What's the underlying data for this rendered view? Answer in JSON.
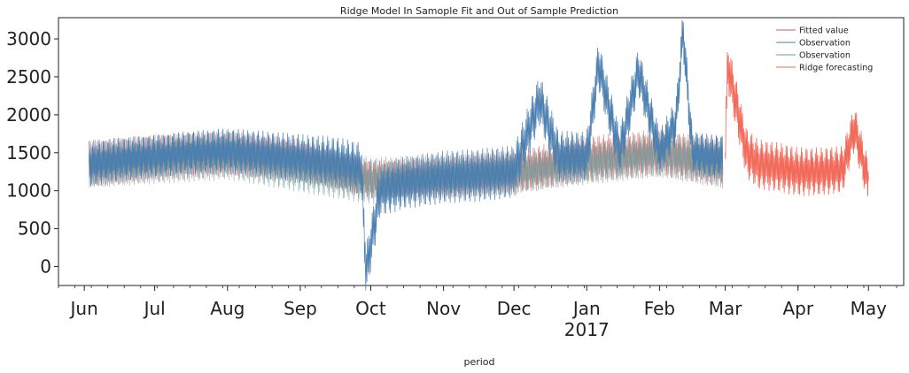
{
  "chart_data": {
    "type": "line",
    "title": "Ridge Model In Samople Fit and Out of Sample Prediction",
    "xlabel": "period",
    "ylabel": "",
    "x_range": [
      "2016-05-21",
      "2017-05-16"
    ],
    "ylim": [
      -250,
      3280
    ],
    "y_ticks": [
      0,
      500,
      1000,
      1500,
      2000,
      2500,
      3000
    ],
    "x_tick_labels": [
      {
        "date": "2016-06-01",
        "label": "Jun",
        "sub": ""
      },
      {
        "date": "2016-07-01",
        "label": "Jul",
        "sub": ""
      },
      {
        "date": "2016-08-01",
        "label": "Aug",
        "sub": ""
      },
      {
        "date": "2016-09-01",
        "label": "Sep",
        "sub": ""
      },
      {
        "date": "2016-10-01",
        "label": "Oct",
        "sub": ""
      },
      {
        "date": "2016-11-01",
        "label": "Nov",
        "sub": ""
      },
      {
        "date": "2016-12-01",
        "label": "Dec",
        "sub": ""
      },
      {
        "date": "2017-01-01",
        "label": "Jan",
        "sub": "2017"
      },
      {
        "date": "2017-02-01",
        "label": "Feb",
        "sub": ""
      },
      {
        "date": "2017-03-01",
        "label": "Mar",
        "sub": ""
      },
      {
        "date": "2017-04-01",
        "label": "Apr",
        "sub": ""
      },
      {
        "date": "2017-05-01",
        "label": "May",
        "sub": ""
      }
    ],
    "grid": false,
    "legend_position": "top-right",
    "series": [
      {
        "name": "Fitted value",
        "color": "#c95b5b",
        "x": [
          "2016-06-03",
          "2016-07-01",
          "2016-08-01",
          "2016-09-01",
          "2016-10-01",
          "2016-11-01",
          "2016-12-01",
          "2017-01-01",
          "2017-02-01",
          "2017-02-28"
        ],
        "y": [
          1350,
          1430,
          1480,
          1400,
          1150,
          1180,
          1240,
          1420,
          1500,
          1350
        ]
      },
      {
        "name": "Observation",
        "color": "#4a7fb0",
        "x": [
          "2016-06-03",
          "2016-06-20",
          "2016-07-01",
          "2016-07-15",
          "2016-08-01",
          "2016-08-15",
          "2016-09-01",
          "2016-09-15",
          "2016-09-27",
          "2016-09-29",
          "2016-10-05",
          "2016-10-15",
          "2016-11-01",
          "2016-11-15",
          "2016-12-01",
          "2016-12-12",
          "2016-12-20",
          "2017-01-01",
          "2017-01-06",
          "2017-01-15",
          "2017-01-23",
          "2017-02-01",
          "2017-02-08",
          "2017-02-11",
          "2017-02-15",
          "2017-02-22",
          "2017-02-28"
        ],
        "y": [
          1350,
          1420,
          1450,
          1500,
          1520,
          1480,
          1420,
          1380,
          1300,
          -80,
          1000,
          1100,
          1180,
          1200,
          1250,
          2200,
          1450,
          1450,
          2670,
          1500,
          2580,
          1500,
          1900,
          3110,
          1500,
          1450,
          1450
        ]
      },
      {
        "name": "Observation",
        "color": "#6b9b9b",
        "x": [
          "2016-06-03",
          "2016-08-01",
          "2016-10-01",
          "2016-12-01",
          "2017-02-01",
          "2017-02-28"
        ],
        "y": [
          1340,
          1470,
          1130,
          1230,
          1480,
          1340
        ]
      },
      {
        "name": "Ridge forecasting",
        "color": "#f26a5a",
        "x": [
          "2017-03-01",
          "2017-03-02",
          "2017-03-05",
          "2017-03-10",
          "2017-03-15",
          "2017-03-25",
          "2017-04-01",
          "2017-04-10",
          "2017-04-20",
          "2017-04-25",
          "2017-05-01"
        ],
        "y": [
          1500,
          2660,
          2230,
          1500,
          1350,
          1300,
          1250,
          1250,
          1280,
          1830,
          1100
        ]
      }
    ]
  }
}
